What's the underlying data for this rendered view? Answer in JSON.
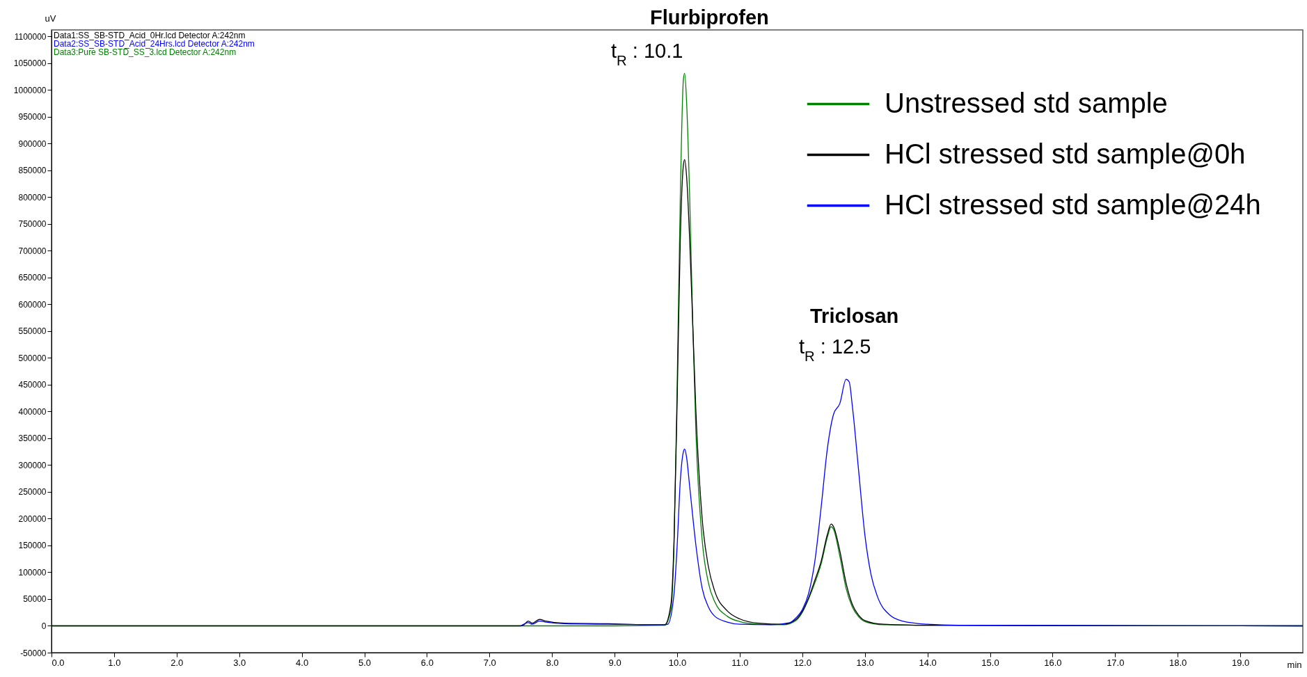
{
  "chart_data": {
    "type": "line",
    "xlabel": "min",
    "ylabel": "uV",
    "xlim": [
      0,
      20
    ],
    "ylim": [
      -50000,
      1112000
    ],
    "xticks": [
      {
        "value": 0,
        "label": "0.0"
      },
      {
        "value": 1,
        "label": "1.0"
      },
      {
        "value": 2,
        "label": "2.0"
      },
      {
        "value": 3,
        "label": "3.0"
      },
      {
        "value": 4,
        "label": "4.0"
      },
      {
        "value": 5,
        "label": "5.0"
      },
      {
        "value": 6,
        "label": "6.0"
      },
      {
        "value": 7,
        "label": "7.0"
      },
      {
        "value": 8,
        "label": "8.0"
      },
      {
        "value": 9,
        "label": "9.0"
      },
      {
        "value": 10,
        "label": "10.0"
      },
      {
        "value": 11,
        "label": "11.0"
      },
      {
        "value": 12,
        "label": "12.0"
      },
      {
        "value": 13,
        "label": "13.0"
      },
      {
        "value": 14,
        "label": "14.0"
      },
      {
        "value": 15,
        "label": "15.0"
      },
      {
        "value": 16,
        "label": "16.0"
      },
      {
        "value": 17,
        "label": "17.0"
      },
      {
        "value": 18,
        "label": "18.0"
      },
      {
        "value": 19,
        "label": "19.0"
      }
    ],
    "yticks": [
      -50000,
      0,
      50000,
      100000,
      150000,
      200000,
      250000,
      300000,
      350000,
      400000,
      450000,
      500000,
      550000,
      600000,
      650000,
      700000,
      750000,
      800000,
      850000,
      900000,
      950000,
      1000000,
      1050000,
      1100000
    ],
    "legend": "top right",
    "series": [
      {
        "name": "Unstressed std sample",
        "color": "#008000",
        "x": [
          0,
          7.5,
          9.0,
          9.8,
          9.9,
          9.95,
          10.0,
          10.05,
          10.1,
          10.12,
          10.15,
          10.2,
          10.25,
          10.3,
          10.4,
          10.5,
          10.6,
          10.8,
          11.0,
          11.3,
          11.7,
          11.9,
          12.0,
          12.1,
          12.2,
          12.3,
          12.4,
          12.46,
          12.5,
          12.6,
          12.7,
          12.8,
          12.9,
          13.0,
          13.3,
          14.0,
          20
        ],
        "values": [
          0,
          0,
          0,
          1000,
          30000,
          150000,
          450000,
          800000,
          1020000,
          1031000,
          980000,
          800000,
          560000,
          360000,
          160000,
          80000,
          45000,
          18000,
          8000,
          3000,
          2000,
          10000,
          25000,
          50000,
          80000,
          115000,
          165000,
          185000,
          180000,
          130000,
          70000,
          35000,
          17000,
          8000,
          2000,
          1000,
          0
        ]
      },
      {
        "name": "HCl stressed std sample@0h",
        "color": "#000000",
        "x": [
          0,
          7.5,
          7.55,
          7.62,
          7.68,
          7.8,
          7.9,
          8.2,
          8.9,
          9.5,
          9.8,
          9.9,
          9.95,
          10.0,
          10.05,
          10.1,
          10.12,
          10.15,
          10.2,
          10.25,
          10.3,
          10.4,
          10.5,
          10.6,
          10.8,
          11.0,
          11.3,
          11.7,
          11.9,
          12.0,
          12.1,
          12.2,
          12.3,
          12.4,
          12.46,
          12.5,
          12.6,
          12.7,
          12.8,
          12.9,
          13.0,
          13.3,
          14.0,
          20
        ],
        "values": [
          0,
          0,
          2000,
          9000,
          5000,
          12000,
          9000,
          5000,
          4000,
          2000,
          2000,
          40000,
          160000,
          420000,
          720000,
          860000,
          870000,
          840000,
          720000,
          560000,
          400000,
          200000,
          110000,
          65000,
          28000,
          13000,
          5000,
          3000,
          12000,
          27000,
          52000,
          85000,
          120000,
          170000,
          190000,
          185000,
          140000,
          80000,
          40000,
          20000,
          10000,
          3000,
          1000,
          0
        ]
      },
      {
        "name": "HCl stressed std sample@24h",
        "color": "#0000ff",
        "x": [
          7.5,
          7.62,
          7.68,
          7.8,
          7.9,
          8.2,
          8.9,
          9.8,
          9.85,
          9.95,
          10.0,
          10.05,
          10.1,
          10.12,
          10.15,
          10.2,
          10.3,
          10.4,
          10.5,
          10.6,
          10.8,
          11.0,
          11.5,
          11.8,
          11.9,
          12.0,
          12.1,
          12.2,
          12.3,
          12.4,
          12.5,
          12.6,
          12.7,
          12.75,
          12.8,
          12.9,
          13.0,
          13.1,
          13.2,
          13.4,
          13.6,
          14.0,
          14.5,
          20
        ],
        "values": [
          0,
          6000,
          3000,
          9000,
          7000,
          4000,
          3000,
          2000,
          3000,
          60000,
          150000,
          270000,
          325000,
          330000,
          315000,
          260000,
          150000,
          70000,
          35000,
          18000,
          7000,
          3000,
          2000,
          6000,
          15000,
          30000,
          60000,
          120000,
          220000,
          330000,
          395000,
          415000,
          460000,
          455000,
          410000,
          290000,
          170000,
          95000,
          55000,
          20000,
          9000,
          3000,
          1000,
          0
        ]
      }
    ],
    "annotations": [
      "Flurbiprofen",
      "t$_{R}$ : 10.1",
      "Triclosan",
      "t$_{R}$ : 12.5",
      "Data1:SS_SB-STD_Acid_0Hr.lcd Detector A:242nm",
      "Data2:SS_SB-STD_Acid_24Hrs.lcd Detector A:242nm",
      "Data3:Pure SB-STD_SS_3.lcd Detector A:242nm"
    ]
  }
}
